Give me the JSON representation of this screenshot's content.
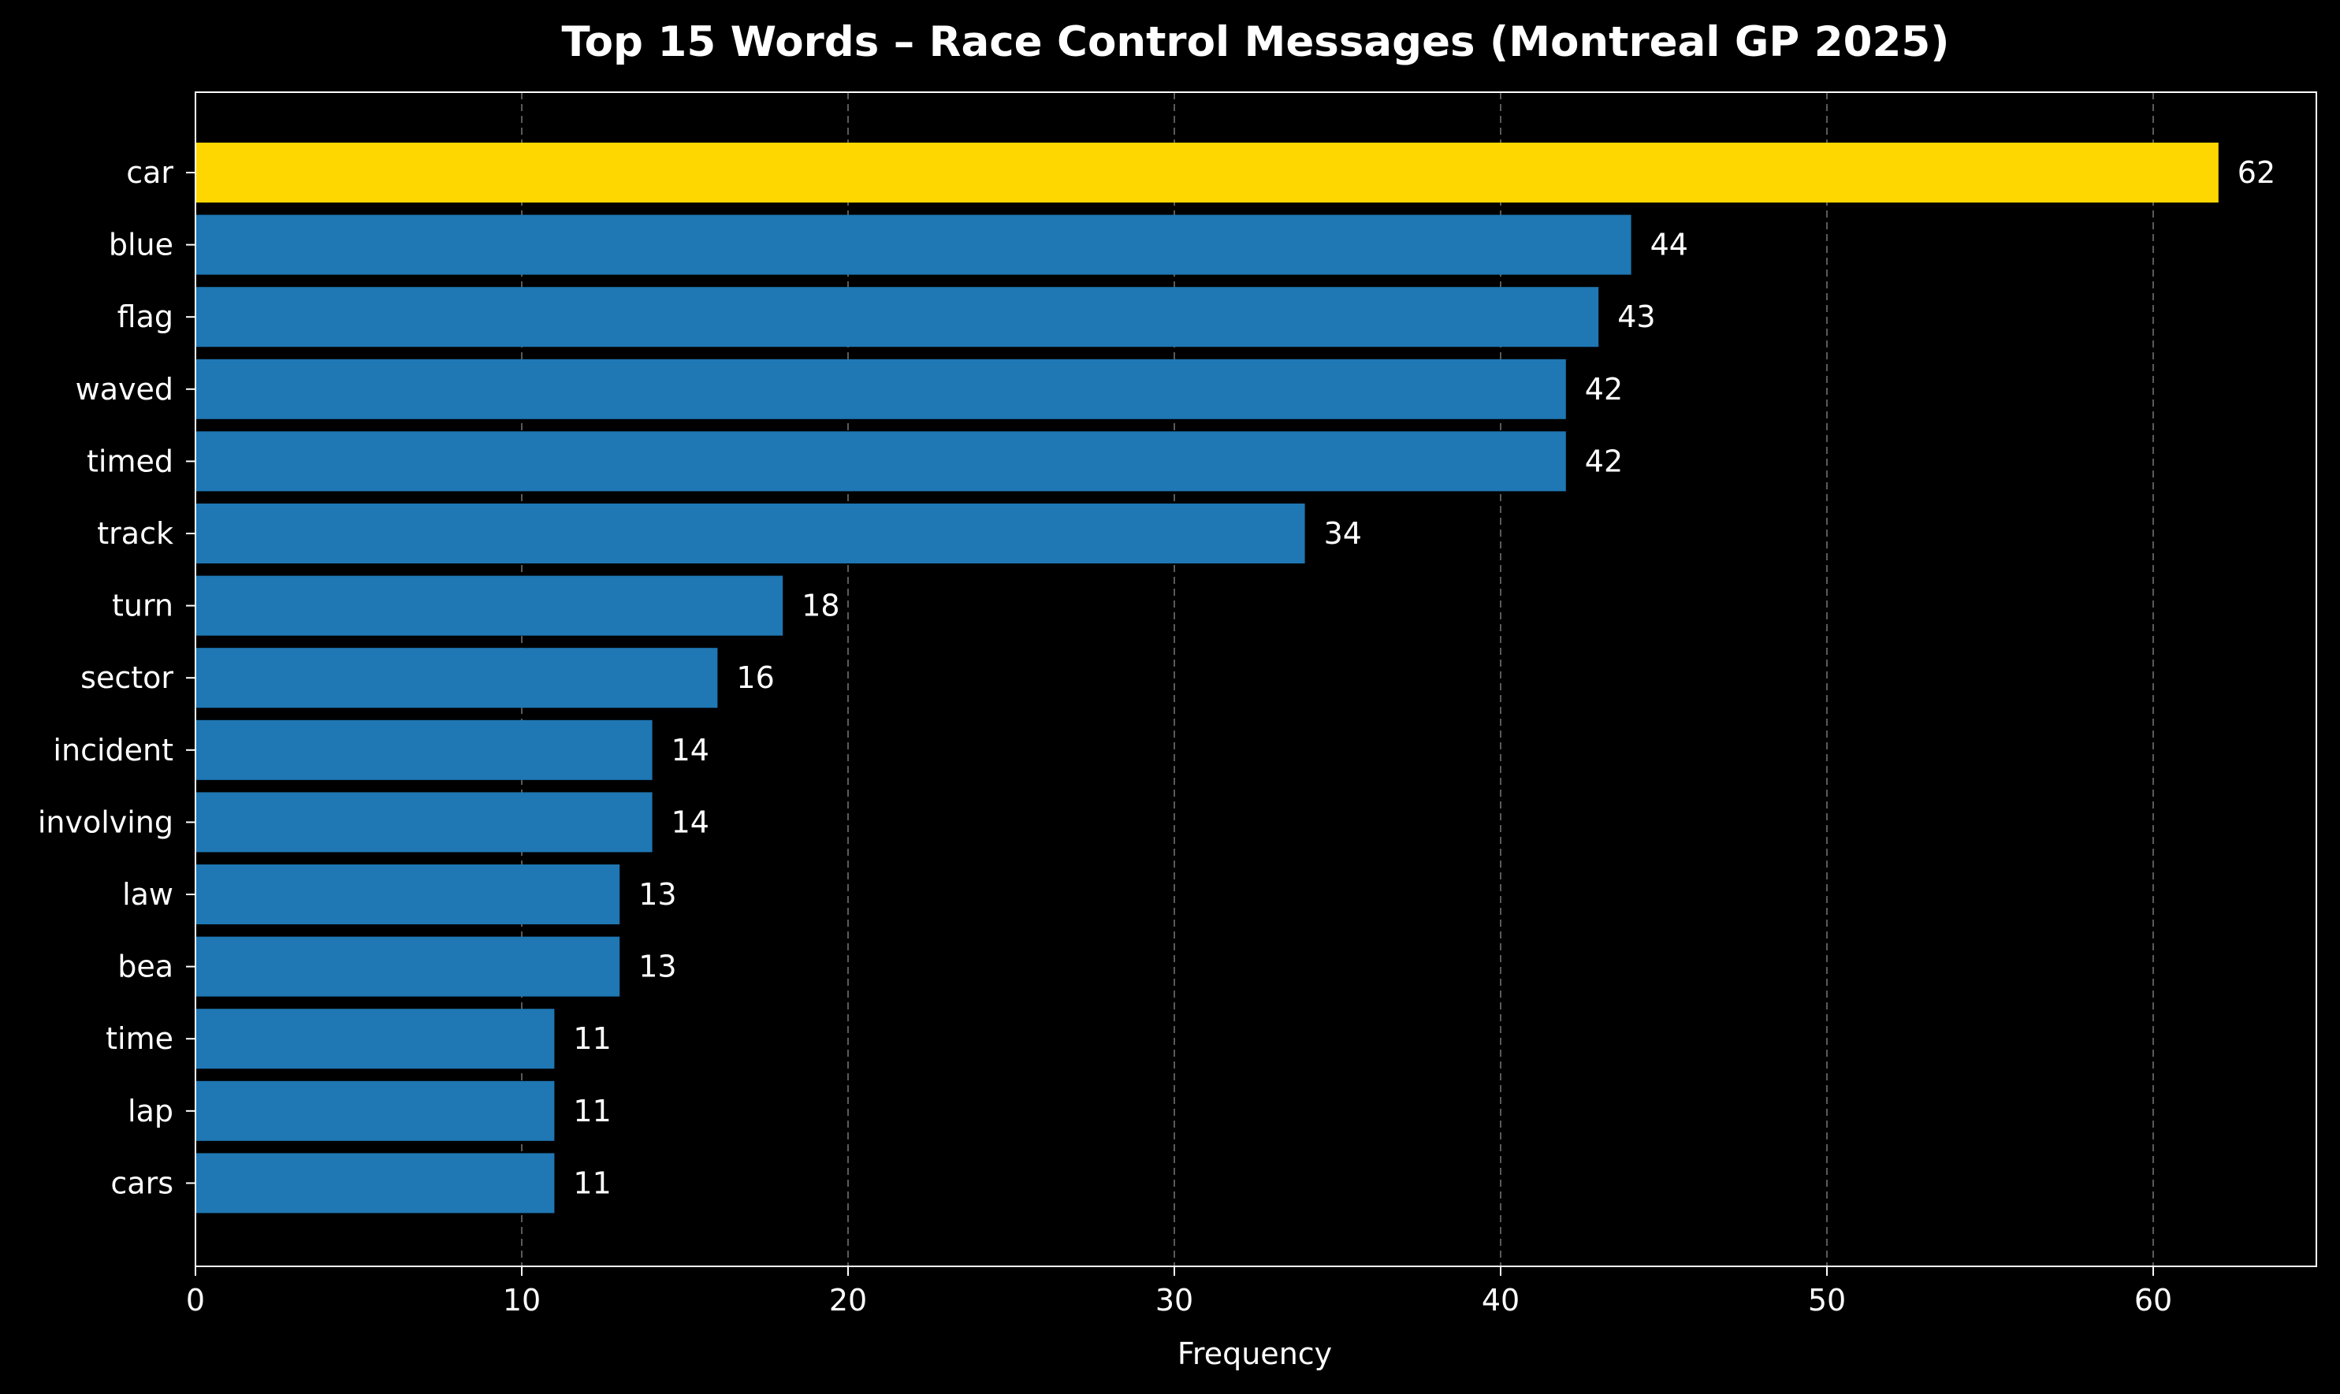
{
  "chart_data": {
    "type": "bar",
    "orientation": "horizontal",
    "title": "Top 15 Words – Race Control Messages (Montreal GP 2025)",
    "xlabel": "Frequency",
    "ylabel": "",
    "xlim": [
      0,
      65
    ],
    "xticks": [
      0,
      10,
      20,
      30,
      40,
      50,
      60
    ],
    "grid": "x-axis dashed",
    "categories": [
      "car",
      "blue",
      "flag",
      "waved",
      "timed",
      "track",
      "turn",
      "sector",
      "incident",
      "involving",
      "law",
      "bea",
      "time",
      "lap",
      "cars"
    ],
    "values": [
      62,
      44,
      43,
      42,
      42,
      34,
      18,
      16,
      14,
      14,
      13,
      13,
      11,
      11,
      11
    ],
    "bar_colors": [
      "#FFD700",
      "#1F77B4",
      "#1F77B4",
      "#1F77B4",
      "#1F77B4",
      "#1F77B4",
      "#1F77B4",
      "#1F77B4",
      "#1F77B4",
      "#1F77B4",
      "#1F77B4",
      "#1F77B4",
      "#1F77B4",
      "#1F77B4",
      "#1F77B4"
    ],
    "data_labels": [
      "62",
      "44",
      "43",
      "42",
      "42",
      "34",
      "18",
      "16",
      "14",
      "14",
      "13",
      "13",
      "11",
      "11",
      "11"
    ]
  },
  "colors": {
    "background": "#000000",
    "highlight": "#FFD700",
    "bar": "#1F77B4",
    "text": "#FFFFFF",
    "grid": "#808080"
  }
}
